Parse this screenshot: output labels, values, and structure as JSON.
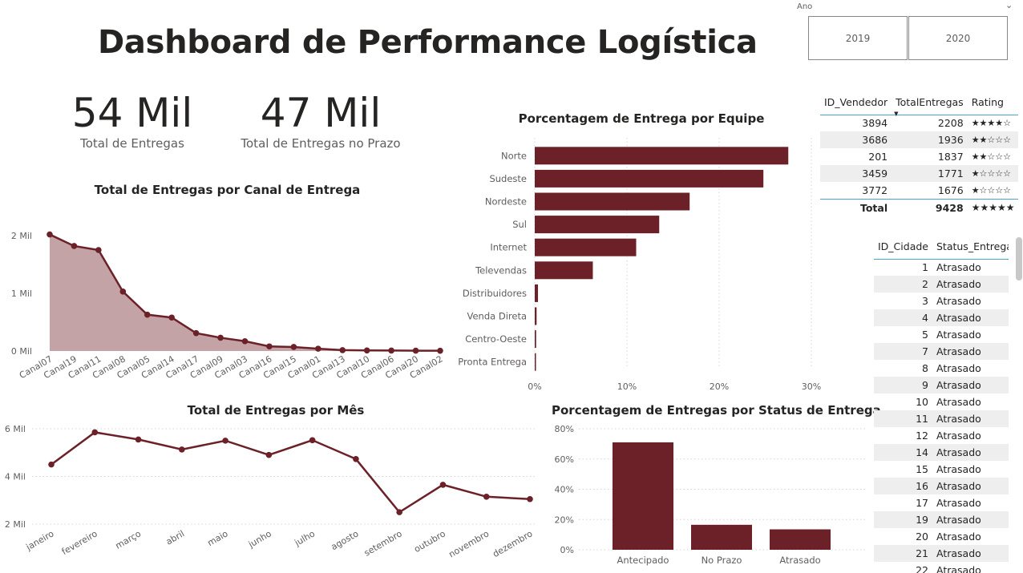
{
  "page": {
    "title": "Dashboard de Performance Logística"
  },
  "slicer": {
    "label": "Ano",
    "options": [
      "2019",
      "2020"
    ]
  },
  "kpis": [
    {
      "value": "54 Mil",
      "label": "Total de Entregas"
    },
    {
      "value": "47 Mil",
      "label": "Total de Entregas no Prazo"
    }
  ],
  "colors": {
    "primary": "#6b2127",
    "area_fill": "#c4a3a6",
    "grid": "#d6d6d6",
    "table_accent": "#4aa5c9",
    "row_alt": "#eeeeee"
  },
  "chart_data": [
    {
      "type": "area",
      "title": "Total de Entregas por Canal de Entrega",
      "categories": [
        "Canal07",
        "Canal19",
        "Canal11",
        "Canal08",
        "Canal05",
        "Canal14",
        "Canal17",
        "Canal09",
        "Canal03",
        "Canal16",
        "Canal15",
        "Canal01",
        "Canal13",
        "Canal10",
        "Canal06",
        "Canal20",
        "Canal02"
      ],
      "values": [
        2020,
        1820,
        1750,
        1030,
        630,
        580,
        310,
        230,
        170,
        80,
        70,
        40,
        15,
        10,
        8,
        6,
        5
      ],
      "ylim": [
        0,
        2000
      ],
      "yticks": [
        0,
        1000,
        2000
      ],
      "ytick_labels": [
        "0 Mil",
        "1 Mil",
        "2 Mil"
      ],
      "grid": false
    },
    {
      "type": "bar",
      "orientation": "horizontal",
      "title": "Porcentagem de Entrega por Equipe",
      "categories": [
        "Norte",
        "Sudeste",
        "Nordeste",
        "Sul",
        "Internet",
        "Televendas",
        "Distribuidores",
        "Venda Direta",
        "Centro-Oeste",
        "Pronta Entrega"
      ],
      "values": [
        27.5,
        24.8,
        16.8,
        13.5,
        11.0,
        6.3,
        0.35,
        0.2,
        0.15,
        0.1
      ],
      "xlim": [
        0,
        30
      ],
      "xticks": [
        0,
        10,
        20,
        30
      ],
      "xtick_labels": [
        "0%",
        "10%",
        "20%",
        "30%"
      ],
      "grid": true
    },
    {
      "type": "line",
      "title": "Total de Entregas por Mês",
      "categories": [
        "janeiro",
        "fevereiro",
        "março",
        "abril",
        "maio",
        "junho",
        "julho",
        "agosto",
        "setembro",
        "outubro",
        "novembro",
        "dezembro"
      ],
      "values": [
        4500,
        5850,
        5550,
        5130,
        5500,
        4900,
        5520,
        4730,
        2500,
        3650,
        3150,
        3050
      ],
      "ylim": [
        2000,
        6000
      ],
      "yticks": [
        2000,
        4000,
        6000
      ],
      "ytick_labels": [
        "2 Mil",
        "4 Mil",
        "6 Mil"
      ],
      "grid": true
    },
    {
      "type": "bar",
      "title": "Porcentagem de Entregas por Status de Entrega",
      "categories": [
        "Antecipado",
        "No Prazo",
        "Atrasado"
      ],
      "values": [
        71,
        16.5,
        13.5
      ],
      "ylim": [
        0,
        80
      ],
      "yticks": [
        0,
        20,
        40,
        60,
        80
      ],
      "ytick_labels": [
        "0%",
        "20%",
        "40%",
        "60%",
        "80%"
      ],
      "grid": true
    }
  ],
  "vendor_table": {
    "headers": [
      "ID_Vendedor",
      "TotalEntregas",
      "Rating"
    ],
    "rows": [
      {
        "id": "3894",
        "total": "2208",
        "rating": "★★★★☆"
      },
      {
        "id": "3686",
        "total": "1936",
        "rating": "★★☆☆☆"
      },
      {
        "id": "201",
        "total": "1837",
        "rating": "★★☆☆☆"
      },
      {
        "id": "3459",
        "total": "1771",
        "rating": "★☆☆☆☆"
      },
      {
        "id": "3772",
        "total": "1676",
        "rating": "★☆☆☆☆"
      }
    ],
    "total": {
      "label": "Total",
      "value": "9428",
      "rating": "★★★★★"
    }
  },
  "city_table": {
    "headers": [
      "ID_Cidade",
      "Status_Entrega"
    ],
    "rows": [
      {
        "id": "1",
        "status": "Atrasado"
      },
      {
        "id": "2",
        "status": "Atrasado"
      },
      {
        "id": "3",
        "status": "Atrasado"
      },
      {
        "id": "4",
        "status": "Atrasado"
      },
      {
        "id": "5",
        "status": "Atrasado"
      },
      {
        "id": "7",
        "status": "Atrasado"
      },
      {
        "id": "8",
        "status": "Atrasado"
      },
      {
        "id": "9",
        "status": "Atrasado"
      },
      {
        "id": "10",
        "status": "Atrasado"
      },
      {
        "id": "11",
        "status": "Atrasado"
      },
      {
        "id": "12",
        "status": "Atrasado"
      },
      {
        "id": "14",
        "status": "Atrasado"
      },
      {
        "id": "15",
        "status": "Atrasado"
      },
      {
        "id": "16",
        "status": "Atrasado"
      },
      {
        "id": "17",
        "status": "Atrasado"
      },
      {
        "id": "19",
        "status": "Atrasado"
      },
      {
        "id": "20",
        "status": "Atrasado"
      },
      {
        "id": "21",
        "status": "Atrasado"
      },
      {
        "id": "22",
        "status": "Atrasado"
      }
    ]
  }
}
